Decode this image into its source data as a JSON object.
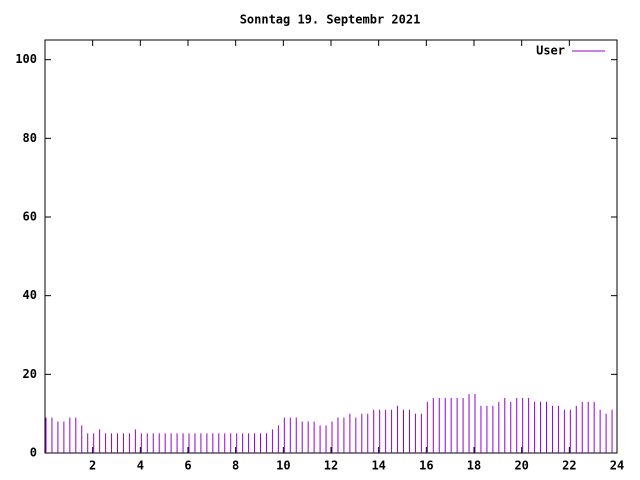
{
  "chart_data": {
    "type": "impulse",
    "title": "Sonntag 19. Septembr 2021",
    "series": [
      {
        "name": "User",
        "color": "#9400d3",
        "x": [
          0,
          0.25,
          0.5,
          0.75,
          1,
          1.25,
          1.5,
          1.75,
          2,
          2.25,
          2.5,
          2.75,
          3,
          3.25,
          3.5,
          3.75,
          4,
          4.25,
          4.5,
          4.75,
          5,
          5.25,
          5.5,
          5.75,
          6,
          6.25,
          6.5,
          6.75,
          7,
          7.25,
          7.5,
          7.75,
          8,
          8.25,
          8.5,
          8.75,
          9,
          9.25,
          9.5,
          9.75,
          10,
          10.25,
          10.5,
          10.75,
          11,
          11.25,
          11.5,
          11.75,
          12,
          12.25,
          12.5,
          12.75,
          13,
          13.25,
          13.5,
          13.75,
          14,
          14.25,
          14.5,
          14.75,
          15,
          15.25,
          15.5,
          15.75,
          16,
          16.25,
          16.5,
          16.75,
          17,
          17.25,
          17.5,
          17.75,
          18,
          18.25,
          18.5,
          18.75,
          19,
          19.25,
          19.5,
          19.75,
          20,
          20.25,
          20.5,
          20.75,
          21,
          21.25,
          21.5,
          21.75,
          22,
          22.25,
          22.5,
          22.75,
          23,
          23.25,
          23.5,
          23.75
        ],
        "values": [
          9,
          9,
          8,
          8,
          9,
          9,
          7,
          5,
          5,
          6,
          5,
          5,
          5,
          5,
          5,
          6,
          5,
          5,
          5,
          5,
          5,
          5,
          5,
          5,
          5,
          5,
          5,
          5,
          5,
          5,
          5,
          5,
          5,
          5,
          5,
          5,
          5,
          5,
          6,
          7,
          9,
          9,
          9,
          8,
          8,
          8,
          7,
          7,
          8,
          9,
          9,
          10,
          9,
          10,
          10,
          11,
          11,
          11,
          11,
          12,
          11,
          11,
          10,
          10,
          13,
          14,
          14,
          14,
          14,
          14,
          14,
          15,
          15,
          12,
          12,
          12,
          13,
          14,
          13,
          14,
          14,
          14,
          13,
          13,
          13,
          12,
          12,
          11,
          11,
          12,
          13,
          13,
          13,
          11,
          10,
          11
        ]
      }
    ],
    "xlim": [
      0,
      24
    ],
    "xticks": [
      2,
      4,
      6,
      8,
      10,
      12,
      14,
      16,
      18,
      20,
      22,
      24
    ],
    "ylim": [
      0,
      105
    ],
    "yticks": [
      0,
      20,
      40,
      60,
      80,
      100
    ],
    "legend": "top-right"
  }
}
